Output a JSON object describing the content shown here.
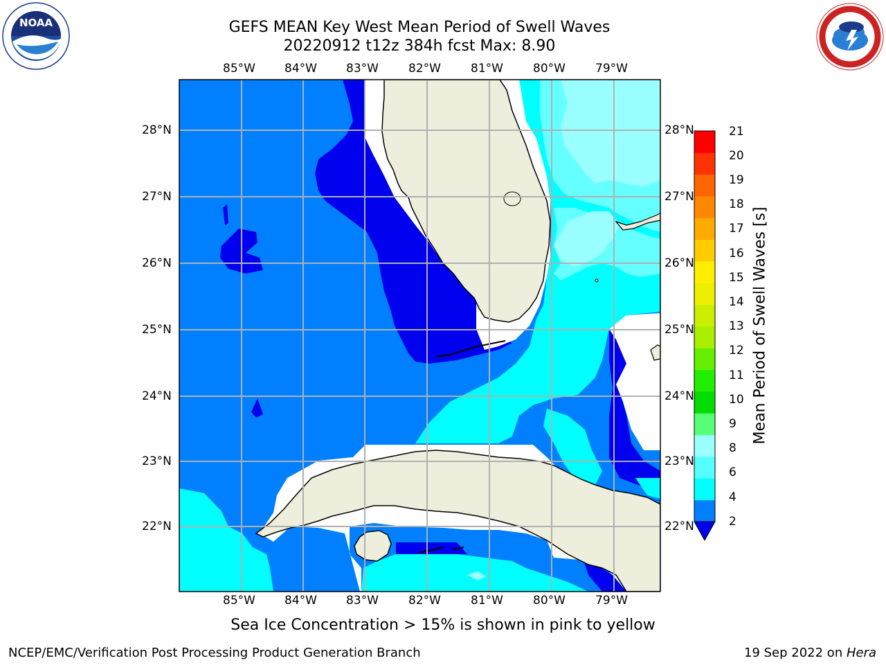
{
  "title": {
    "line1": "GEFS MEAN Key West Mean Period of Swell Waves",
    "line2": "20220912 t12z 384h fcst   Max: 8.90"
  },
  "logos": {
    "noaa_text": "NOAA",
    "noaa_ring": "NATIONAL OCEANIC AND ATMOSPHERIC ADMINISTRATION · U.S. DEPARTMENT OF COMMERCE",
    "nws_ring": "NATIONAL WEATHER SERVICE"
  },
  "map": {
    "lon_labels": [
      "85°W",
      "84°W",
      "83°W",
      "82°W",
      "81°W",
      "80°W",
      "79°W"
    ],
    "lat_labels": [
      "28°N",
      "27°N",
      "26°N",
      "25°N",
      "24°N",
      "23°N",
      "22°N"
    ],
    "lon_range": [
      -86.0,
      -78.25
    ],
    "lat_range": [
      21.05,
      28.8
    ],
    "colors": {
      "band_2_4": "#0080ff",
      "band_below_2": "#0000ee",
      "band_4_6": "#00ffff",
      "band_6_8": "#66ffff",
      "band_8_9": "#99ffff",
      "land": "#eeeedd",
      "grid": "#b0b0b0"
    }
  },
  "colorbar": {
    "label": "Mean Period of Swell Waves [s]",
    "ticks": [
      "21",
      "20",
      "19",
      "18",
      "17",
      "16",
      "15",
      "14",
      "13",
      "12",
      "11",
      "10",
      "9",
      "8",
      "6",
      "4",
      "2"
    ],
    "colors_bottom_to_top": [
      "#0080ff",
      "#00ffff",
      "#55ffff",
      "#99ffff",
      "#55ff77",
      "#00dd00",
      "#22ee00",
      "#66ee00",
      "#aaee00",
      "#ccee00",
      "#eeee00",
      "#ffee00",
      "#ffcc00",
      "#ffaa00",
      "#ff8800",
      "#ff6600",
      "#ff3300",
      "#ff0000"
    ],
    "extend_color": "#0000ee"
  },
  "caption": "Sea Ice Concentration > 15% is shown in pink to yellow",
  "footer": {
    "left": "NCEP/EMC/Verification Post Processing Product Generation Branch",
    "right_date": "19 Sep 2022 on ",
    "right_host": "Hera"
  }
}
